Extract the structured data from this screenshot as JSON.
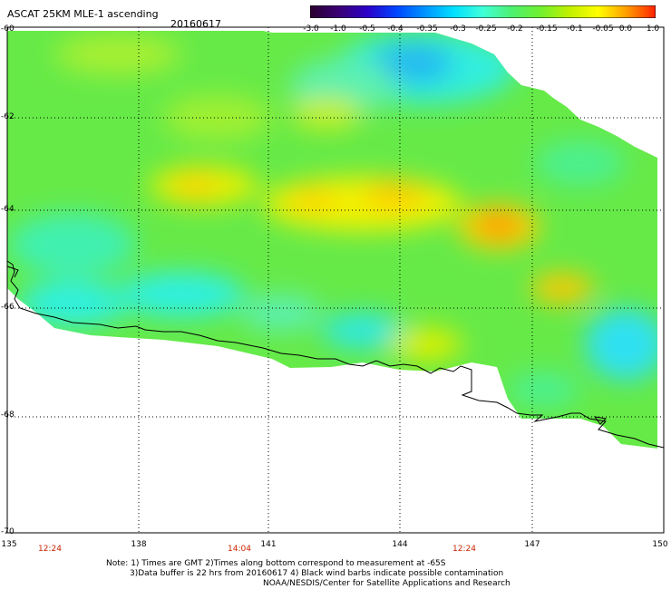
{
  "title": "ASCAT 25KM MLE-1 ascending",
  "date": "20160617",
  "colorbar": {
    "labels": [
      "-3.0",
      "-1.0",
      "-0.5",
      "-0.4",
      "-0.35",
      "-0.3",
      "-0.25",
      "-0.2",
      "-0.15",
      "-0.1",
      "-0.05",
      "0.0",
      "1.0"
    ],
    "colors": [
      "#2a0030",
      "#3a0075",
      "#2b00c8",
      "#0045ff",
      "#0095ff",
      "#00e0ff",
      "#40ffd8",
      "#4cf070",
      "#70f030",
      "#c0f000",
      "#ffff00",
      "#ff9c00",
      "#ff2000"
    ]
  },
  "lat_labels": [
    "-60",
    "-62",
    "-64",
    "-66",
    "-68",
    "-70"
  ],
  "lon_labels": [
    "135",
    "138",
    "141",
    "144",
    "147",
    "150"
  ],
  "time_labels": [
    "12:24",
    "14:04",
    "12:24"
  ],
  "note_line1": "Note: 1) Times are GMT 2)Times along bottom correspond to measurement at -65S",
  "note_line2": "3)Data buffer is 22 hrs from 20160617 4) Black wind barbs indicate possible contamination",
  "credit": "NOAA/NESDIS/Center for Satellite Applications and Research"
}
